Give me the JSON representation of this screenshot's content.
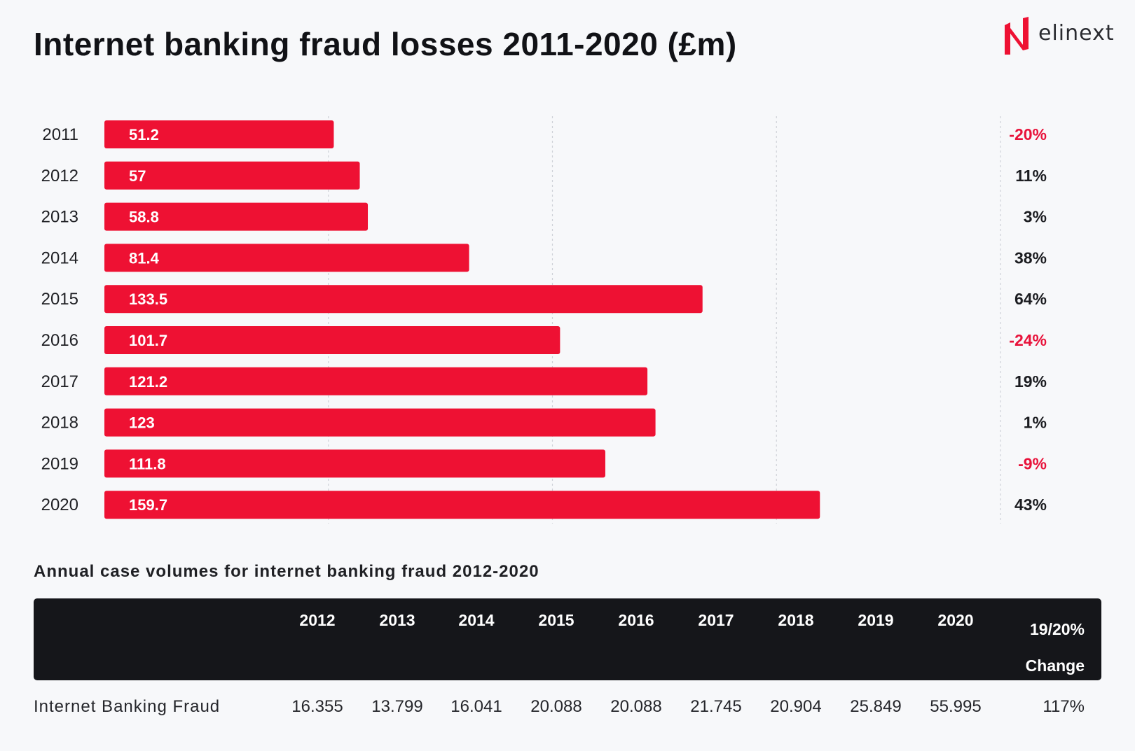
{
  "title": "Internet banking fraud losses 2011-2020 (£m)",
  "logo": {
    "text": "elinext",
    "icon": "elinext-logo-icon"
  },
  "colors": {
    "bar": "#ee1133",
    "negative": "#e8123a",
    "positive": "#1b1c20",
    "grid": "#cfd2d8",
    "table_bg": "#15161a"
  },
  "chart_data": {
    "type": "bar",
    "orientation": "horizontal",
    "title": "Internet banking fraud losses 2011-2020 (£m)",
    "categories": [
      "2011",
      "2012",
      "2013",
      "2014",
      "2015",
      "2016",
      "2017",
      "2018",
      "2019",
      "2020"
    ],
    "values": [
      51.2,
      57,
      58.8,
      81.4,
      133.5,
      101.7,
      121.2,
      123,
      111.8,
      159.7
    ],
    "value_labels": [
      "51.2",
      "57",
      "58.8",
      "81.4",
      "133.5",
      "101.7",
      "121.2",
      "123",
      "111.8",
      "159.7"
    ],
    "changes": [
      "-20%",
      "11%",
      "3%",
      "38%",
      "64%",
      "-24%",
      "19%",
      "1%",
      "-9%",
      "43%"
    ],
    "xlim": [
      0,
      200
    ],
    "gridlines": [
      50,
      100,
      150,
      200
    ],
    "grid": true,
    "legend": "none"
  },
  "table": {
    "subtitle": "Annual case volumes for internet banking fraud 2012-2020",
    "columns": [
      "2012",
      "2013",
      "2014",
      "2015",
      "2016",
      "2017",
      "2018",
      "2019",
      "2020"
    ],
    "change_header_line1": "19/20%",
    "change_header_line2": "Change",
    "row": {
      "label": "Internet Banking Fraud",
      "values": [
        "16.355",
        "13.799",
        "16.041",
        "20.088",
        "20.088",
        "21.745",
        "20.904",
        "25.849",
        "55.995"
      ],
      "change": "117%"
    }
  }
}
